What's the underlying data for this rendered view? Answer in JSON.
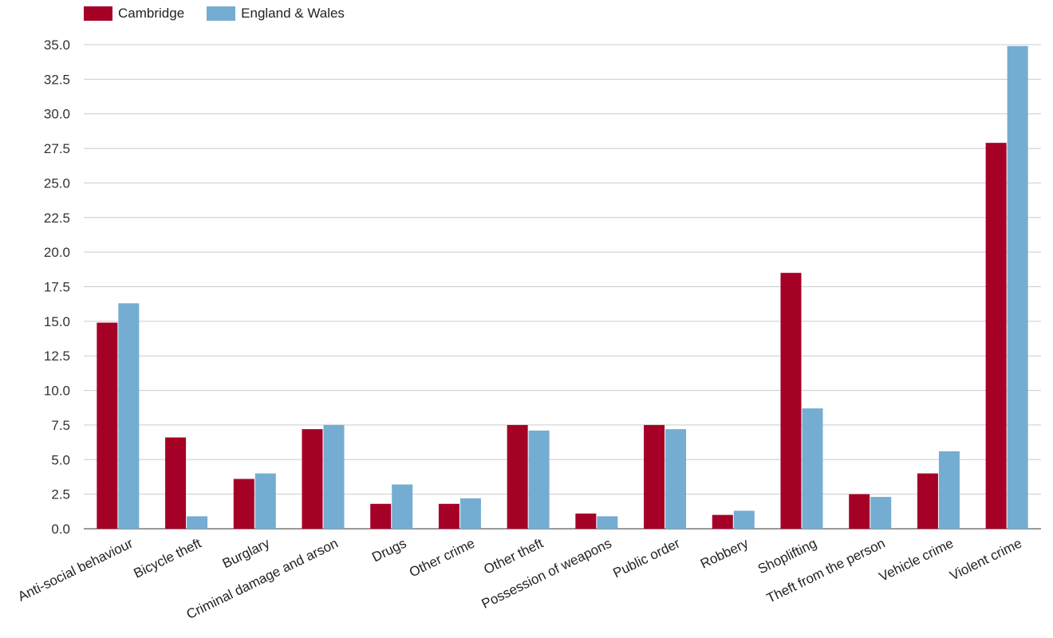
{
  "colors": {
    "cambridge": "#a50026",
    "england_wales": "#74add1",
    "grid": "#cccccc",
    "axis": "#333333"
  },
  "chart_data": {
    "type": "bar",
    "categories": [
      "Anti-social behaviour",
      "Bicycle theft",
      "Burglary",
      "Criminal damage and arson",
      "Drugs",
      "Other crime",
      "Other theft",
      "Possession of weapons",
      "Public order",
      "Robbery",
      "Shoplifting",
      "Theft from the person",
      "Vehicle crime",
      "Violent crime"
    ],
    "series": [
      {
        "name": "Cambridge",
        "values": [
          14.9,
          6.6,
          3.6,
          7.2,
          1.8,
          1.8,
          7.5,
          1.1,
          7.5,
          1.0,
          18.5,
          2.5,
          4.0,
          27.9
        ]
      },
      {
        "name": "England & Wales",
        "values": [
          16.3,
          0.9,
          4.0,
          7.5,
          3.2,
          2.2,
          7.1,
          0.9,
          7.2,
          1.3,
          8.7,
          2.3,
          5.6,
          34.9
        ]
      }
    ],
    "ylim": [
      0,
      35
    ],
    "yticks": [
      "0.0",
      "2.5",
      "5.0",
      "7.5",
      "10.0",
      "12.5",
      "15.0",
      "17.5",
      "20.0",
      "22.5",
      "25.0",
      "27.5",
      "30.0",
      "32.5",
      "35.0"
    ],
    "grid": true,
    "legend": "top-left"
  }
}
